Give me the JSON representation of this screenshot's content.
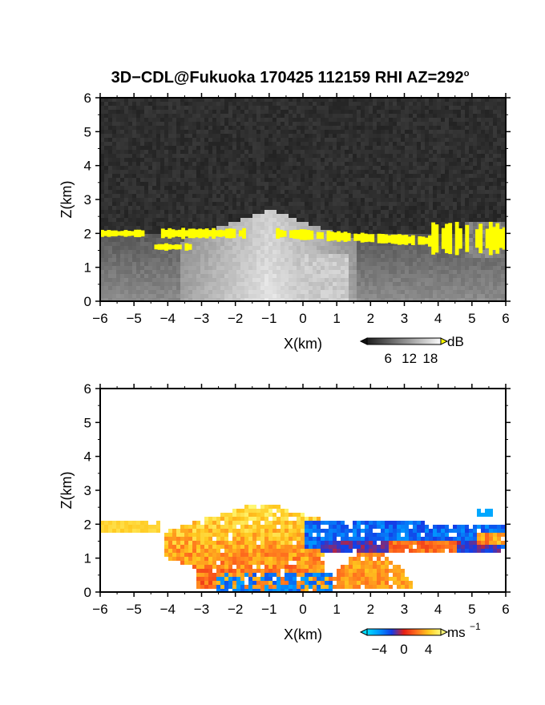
{
  "title": {
    "text": "3D−CDL@Fukuoka 170425 112159 RHI AZ=292",
    "degree": "o"
  },
  "chart_data": [
    {
      "type": "heatmap",
      "name": "reflectivity-rhi",
      "xlabel": "X(km)",
      "ylabel": "Z(km)",
      "xlim": [
        -6,
        6
      ],
      "ylim": [
        0,
        6
      ],
      "x_ticks": [
        "−6",
        "−5",
        "−4",
        "−3",
        "−2",
        "−1",
        "0",
        "1",
        "2",
        "3",
        "4",
        "5",
        "6"
      ],
      "y_ticks": [
        "0",
        "1",
        "2",
        "3",
        "4",
        "5",
        "6"
      ],
      "colorbar": {
        "unit": "dB",
        "ticks": [
          "6",
          "12",
          "18"
        ],
        "range": [
          0,
          21
        ]
      },
      "colors": {
        "background_noise": "#2a2a2a",
        "saturation": "#ffff00",
        "low": "#1e1e1e",
        "high": "#f0f0f0"
      },
      "features": [
        {
          "label": "noise_floor",
          "x_range": [
            -6,
            6
          ],
          "z_range": [
            0,
            6
          ],
          "value_db": 1
        },
        {
          "label": "aerosol_layer",
          "x_range": [
            -6,
            6
          ],
          "z_range": [
            0,
            2
          ],
          "value_db": 8
        },
        {
          "label": "convective_plume",
          "x_range": [
            -3,
            0.5
          ],
          "z_range": [
            0,
            2.7
          ],
          "value_db": 14
        },
        {
          "label": "cloud_base_saturated",
          "x_range": [
            -0.8,
            3.8
          ],
          "z_range": [
            1.75,
            2.05
          ],
          "value_db": 21
        },
        {
          "label": "cloud_base_saturated_left",
          "x_range": [
            -4.2,
            -1.6
          ],
          "z_range": [
            1.85,
            2.15
          ],
          "value_db": 21
        },
        {
          "label": "cloud_base_saturated_far_left",
          "x_range": [
            -6,
            -4.7
          ],
          "z_range": [
            1.9,
            2.1
          ],
          "value_db": 21
        },
        {
          "label": "cloud_base_saturated_low_left",
          "x_range": [
            -4.4,
            -3.3
          ],
          "z_range": [
            1.5,
            1.7
          ],
          "value_db": 21
        },
        {
          "label": "cloud_base_saturated_right",
          "x_range": [
            3.8,
            6
          ],
          "z_range": [
            1.4,
            2.3
          ],
          "value_db": 21
        }
      ]
    },
    {
      "type": "heatmap",
      "name": "doppler-velocity-rhi",
      "xlabel": "X(km)",
      "ylabel": "Z(km)",
      "xlim": [
        -6,
        6
      ],
      "ylim": [
        0,
        6
      ],
      "x_ticks": [
        "−6",
        "−5",
        "−4",
        "−3",
        "−2",
        "−1",
        "0",
        "1",
        "2",
        "3",
        "4",
        "5",
        "6"
      ],
      "y_ticks": [
        "0",
        "1",
        "2",
        "3",
        "4",
        "5",
        "6"
      ],
      "colorbar": {
        "unit": "ms",
        "unit_exponent": "−1",
        "ticks": [
          "−4",
          "0",
          "4"
        ],
        "range": [
          -6,
          6
        ]
      },
      "features": [
        {
          "label": "outflow_toward",
          "x_range": [
            -4,
            0.5
          ],
          "z_range": [
            0.8,
            2.6
          ],
          "value_ms": 4.5
        },
        {
          "label": "core_toward",
          "x_range": [
            -2,
            1.5
          ],
          "z_range": [
            0.6,
            1.9
          ],
          "value_ms": 1.5
        },
        {
          "label": "upper_away",
          "x_range": [
            0,
            6
          ],
          "z_range": [
            1.3,
            2.1
          ],
          "value_ms": -3
        },
        {
          "label": "left_layer_toward",
          "x_range": [
            -6,
            -4.2
          ],
          "z_range": [
            1.7,
            2.05
          ],
          "value_ms": 4.5
        },
        {
          "label": "low_right_toward",
          "x_range": [
            1,
            3.2
          ],
          "z_range": [
            0,
            1.2
          ],
          "value_ms": 3.5
        },
        {
          "label": "low_center_away",
          "x_range": [
            -3,
            1
          ],
          "z_range": [
            0,
            0.8
          ],
          "value_ms": -3.5
        }
      ]
    }
  ]
}
